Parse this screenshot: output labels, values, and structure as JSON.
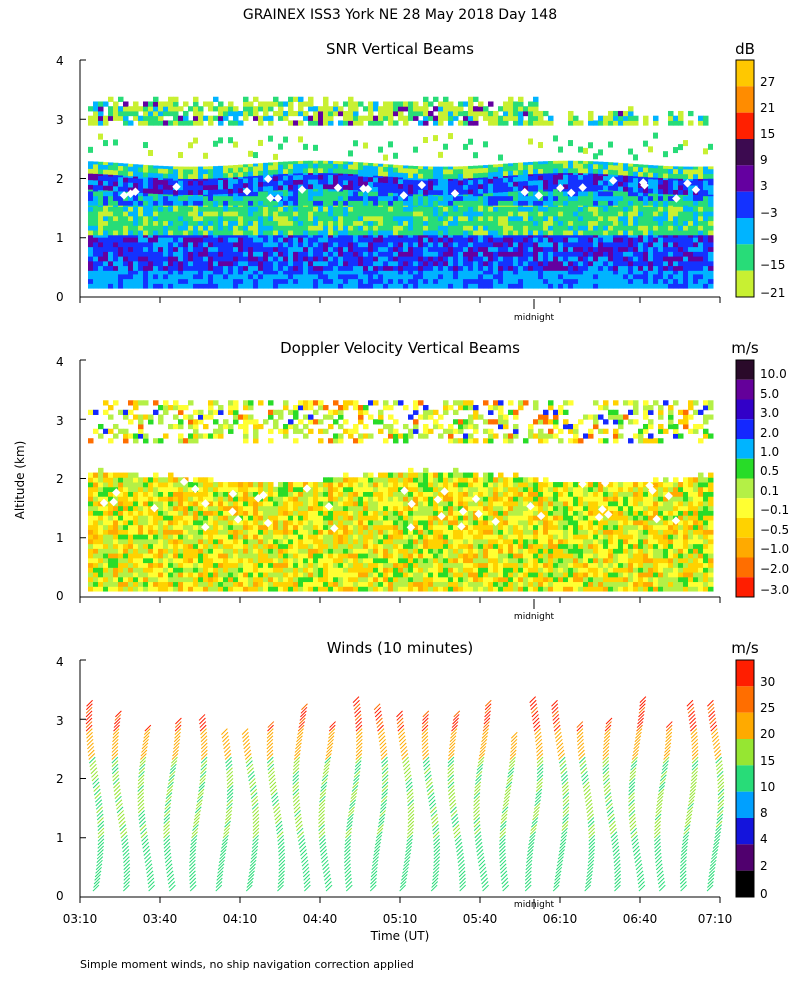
{
  "figure_title": "GRAINEX ISS3 York NE  28 May 2018 Day 148",
  "y_axis_label": "Altitude (km)",
  "x_axis_label": "Time (UT)",
  "footnote": "Simple moment winds, no ship navigation correction applied",
  "midnight_label": "midnight",
  "x_tick_labels": [
    "03:10",
    "03:40",
    "04:10",
    "04:40",
    "05:10",
    "05:40",
    "06:10",
    "06:40",
    "07:10"
  ],
  "y_tick_labels": [
    "0",
    "1",
    "2",
    "3",
    "4"
  ],
  "chart_data": [
    {
      "type": "heatmap",
      "title": "SNR Vertical Beams",
      "xlabel": "",
      "ylabel": "Altitude (km)",
      "ylim": [
        0,
        4
      ],
      "colorbar_unit": "dB",
      "colorbar_labels": [
        "27",
        "21",
        "15",
        "9",
        "3",
        "−3",
        "−9",
        "−15",
        "−21"
      ],
      "colorbar_colors": [
        "#ffc800",
        "#ff8c00",
        "#ff2000",
        "#3c0a50",
        "#6400a0",
        "#1432ff",
        "#00b4ff",
        "#28dc78",
        "#c8f032"
      ],
      "layers": [
        {
          "alt_km": [
            0.15,
            0.45
          ],
          "value_db": -9
        },
        {
          "alt_km": [
            0.45,
            1.05
          ],
          "value_db": -3
        },
        {
          "alt_km": [
            1.05,
            1.75
          ],
          "value_db": -15
        },
        {
          "alt_km": [
            1.75,
            2.05
          ],
          "value_db": -3
        },
        {
          "alt_km": [
            2.05,
            2.5
          ],
          "value_db": -21
        },
        {
          "alt_km": [
            2.9,
            3.2
          ],
          "value_db": -15
        }
      ]
    },
    {
      "type": "heatmap",
      "title": "Doppler Velocity Vertical Beams",
      "xlabel": "",
      "ylabel": "Altitude (km)",
      "ylim": [
        0,
        4
      ],
      "colorbar_unit": "m/s",
      "colorbar_labels": [
        "10.0",
        "5.0",
        "3.0",
        "2.0",
        "1.0",
        "0.5",
        "0.1",
        "−0.1",
        "−0.5",
        "−1.0",
        "−2.0",
        "−3.0"
      ],
      "colorbar_colors": [
        "#2a0a2a",
        "#64009a",
        "#3200c8",
        "#1428ff",
        "#00b4ff",
        "#28dc28",
        "#b4f046",
        "#ffff32",
        "#ffd200",
        "#ffaa00",
        "#ff6e00",
        "#ff1e00"
      ],
      "layers": [
        {
          "alt_km": [
            0.1,
            2.1
          ],
          "value_ms": -0.3
        },
        {
          "alt_km": [
            2.6,
            3.2
          ],
          "value_ms": 0.1
        }
      ]
    },
    {
      "type": "scatter",
      "title": "Winds (10 minutes)",
      "xlabel": "Time (UT)",
      "ylabel": "Altitude (km)",
      "ylim": [
        0,
        4
      ],
      "x": [
        "03:10",
        "03:40",
        "04:10",
        "04:40",
        "05:10",
        "05:40",
        "06:10",
        "06:40",
        "07:10"
      ],
      "colorbar_unit": "m/s",
      "colorbar_labels": [
        "30",
        "25",
        "20",
        "15",
        "10",
        "8",
        "4",
        "2",
        "0"
      ],
      "colorbar_colors": [
        "#ff1e00",
        "#ff6e00",
        "#ffaa00",
        "#96e632",
        "#28dc78",
        "#00a0ff",
        "#1414dc",
        "#50006e",
        "#000000"
      ],
      "wind_speed_profile": [
        {
          "alt_km": 0.5,
          "speed_ms": 15
        },
        {
          "alt_km": 1.5,
          "speed_ms": 15
        },
        {
          "alt_km": 2.5,
          "speed_ms": 20
        },
        {
          "alt_km": 3.2,
          "speed_ms": 30
        }
      ]
    }
  ]
}
